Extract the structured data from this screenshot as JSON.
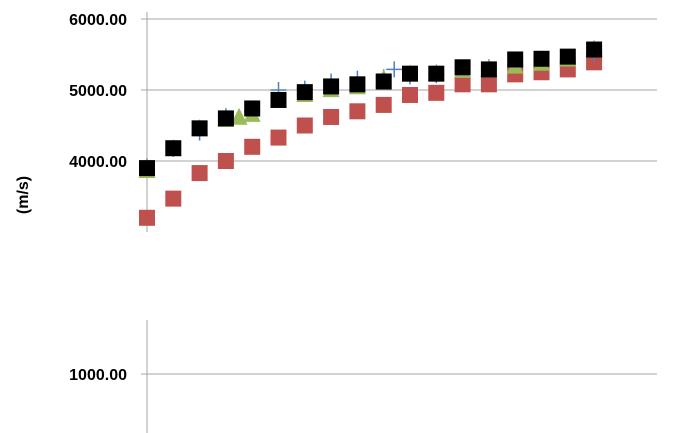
{
  "chart_data": [
    {
      "type": "scatter",
      "title": "",
      "xlabel": "",
      "ylabel": "(m/s)",
      "ylim": [
        3000,
        6000
      ],
      "xlim": [
        0,
        20
      ],
      "yticks": [
        {
          "value": 6000,
          "label": "6000.00"
        },
        {
          "value": 5000,
          "label": "5000.00"
        },
        {
          "value": 4000,
          "label": "4000.00"
        }
      ],
      "grid": true,
      "legend": "none",
      "series": [
        {
          "marker": "square",
          "color": "#c0504d",
          "x": [
            0,
            1,
            2,
            3,
            4,
            5,
            6,
            7,
            8,
            9,
            10,
            11,
            12,
            13,
            14,
            15,
            16,
            17
          ],
          "y": [
            3200,
            3470,
            3830,
            4000,
            4200,
            4330,
            4500,
            4620,
            4700,
            4790,
            4930,
            4960,
            5080,
            5080,
            5220,
            5250,
            5290,
            5390
          ]
        },
        {
          "marker": "plus",
          "color": "#4f81bd",
          "x": [
            0,
            1,
            2,
            3,
            4,
            5,
            6,
            7,
            8,
            9,
            9.4,
            10,
            11,
            12,
            13,
            14,
            15,
            16,
            17
          ],
          "y": [
            3920,
            4170,
            4400,
            4630,
            4700,
            5000,
            5020,
            5120,
            5160,
            5180,
            5290,
            5190,
            5210,
            5280,
            5320,
            5350,
            5390,
            5420,
            5510
          ]
        },
        {
          "marker": "triangle",
          "color": "#9bbb59",
          "x": [
            0,
            1,
            2,
            3,
            3.5,
            4,
            5,
            6,
            7,
            8,
            9,
            10,
            11,
            12,
            13,
            14,
            15,
            16,
            17
          ],
          "y": [
            3880,
            4190,
            4470,
            4600,
            4630,
            4670,
            4870,
            4950,
            5020,
            5060,
            5170,
            5240,
            5250,
            5290,
            5310,
            5350,
            5390,
            5450,
            5590
          ]
        },
        {
          "marker": "square",
          "color": "#000000",
          "x": [
            0,
            1,
            2,
            3,
            4,
            5,
            6,
            7,
            8,
            9,
            10,
            11,
            12,
            13,
            14,
            15,
            16,
            17
          ],
          "y": [
            3900,
            4180,
            4460,
            4600,
            4740,
            4860,
            4970,
            5050,
            5080,
            5120,
            5230,
            5230,
            5320,
            5290,
            5430,
            5440,
            5470,
            5570
          ]
        }
      ]
    },
    {
      "type": "scatter",
      "title": "",
      "xlabel": "",
      "ylabel": "",
      "ylim": [
        0,
        2000
      ],
      "yticks": [
        {
          "value": 1000,
          "label": "1000.00"
        }
      ],
      "grid": true,
      "legend": "none",
      "series": []
    }
  ]
}
